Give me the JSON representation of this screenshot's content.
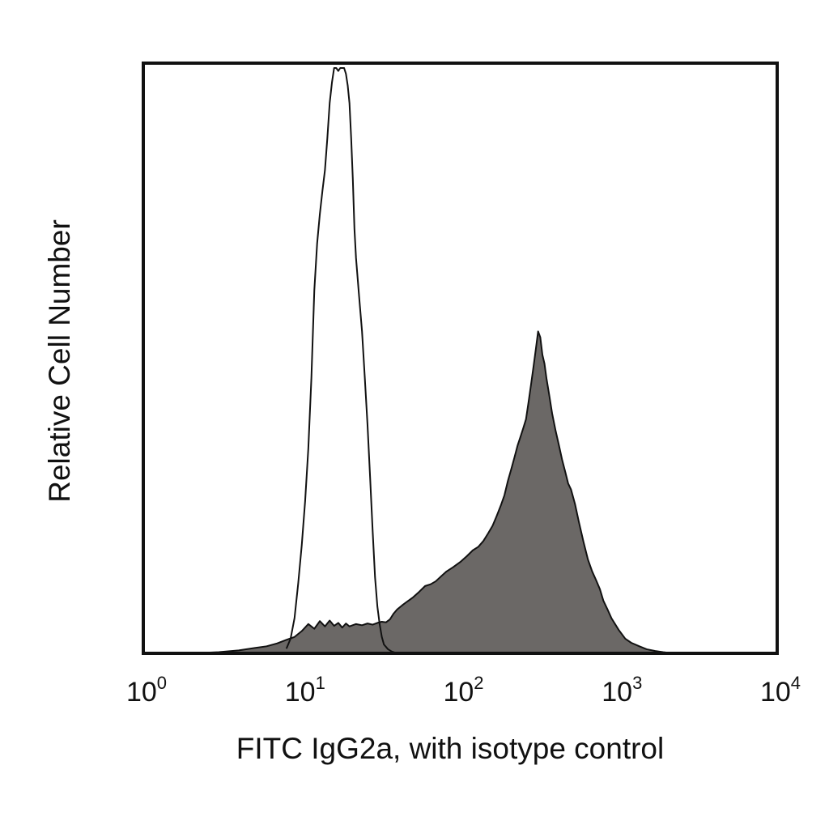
{
  "chart_data": {
    "type": "area",
    "xlabel": "FITC IgG2a, with isotype control",
    "ylabel": "Relative Cell Number",
    "x_scale": "log",
    "xlim": [
      1,
      10000
    ],
    "ylim": [
      0,
      100
    ],
    "grid": false,
    "x_ticks": [
      {
        "base": "10",
        "exp": "0",
        "value": 1
      },
      {
        "base": "10",
        "exp": "1",
        "value": 10
      },
      {
        "base": "10",
        "exp": "2",
        "value": 100
      },
      {
        "base": "10",
        "exp": "3",
        "value": 1000
      },
      {
        "base": "10",
        "exp": "4",
        "value": 10000
      }
    ],
    "series": [
      {
        "style": "filled",
        "fill_color": "#6b6866",
        "line_color": "#111111",
        "x": [
          2.0,
          3.0,
          4.0,
          5.0,
          6.0,
          7.0,
          8.0,
          9.0,
          10.0,
          11.0,
          12.0,
          13.0,
          14.0,
          15.0,
          16.0,
          17.0,
          18.0,
          19.0,
          20.0,
          22.0,
          24.0,
          26.0,
          28.0,
          30.0,
          32.0,
          34.0,
          36.0,
          38.0,
          40.0,
          43.0,
          46.0,
          50.0,
          55.0,
          60.0,
          65.0,
          70.0,
          76.0,
          82.0,
          90.0,
          100.0,
          110.0,
          120.0,
          130.0,
          140.0,
          150.0,
          160.0,
          170.0,
          180.0,
          190.0,
          200.0,
          210.0,
          220.0,
          230.0,
          240.0,
          250.0,
          260.0,
          270.0,
          280.0,
          290.0,
          300.0,
          310.0,
          320.0,
          330.0,
          340.0,
          350.0,
          365.0,
          380.0,
          400.0,
          420.0,
          440.0,
          460.0,
          480.0,
          500.0,
          530.0,
          560.0,
          600.0,
          640.0,
          680.0,
          720.0,
          760.0,
          800.0,
          850.0,
          900.0,
          1000.0,
          1100.0,
          1200.0,
          1350.0,
          1500.0,
          1700.0,
          1900.0,
          2200.0
        ],
        "y": [
          0,
          0.2,
          0.5,
          0.9,
          1.2,
          1.7,
          2.3,
          2.8,
          3.8,
          5.0,
          4.2,
          5.5,
          4.6,
          5.6,
          4.7,
          5.2,
          4.4,
          5.1,
          4.6,
          5.0,
          4.8,
          5.1,
          4.9,
          5.2,
          5.4,
          5.3,
          5.8,
          6.8,
          7.5,
          8.2,
          8.8,
          9.5,
          10.5,
          11.5,
          11.8,
          12.3,
          13.2,
          14.0,
          14.7,
          15.6,
          16.6,
          17.6,
          18.2,
          19.2,
          20.5,
          21.8,
          23.5,
          25.2,
          27.0,
          29.5,
          31.5,
          33.5,
          35.5,
          37.0,
          38.5,
          40.0,
          43.0,
          46.0,
          49.0,
          52.0,
          55.0,
          54.0,
          51.0,
          49.5,
          47.0,
          44.0,
          41.0,
          38.0,
          35.5,
          33.0,
          31.0,
          29.0,
          28.0,
          25.5,
          22.5,
          19.0,
          16.0,
          14.0,
          12.5,
          11.0,
          9.0,
          7.5,
          6.0,
          4.0,
          2.5,
          1.8,
          1.2,
          0.7,
          0.4,
          0.2,
          0
        ]
      },
      {
        "style": "outline",
        "fill_color": "none",
        "line_color": "#111111",
        "x": [
          8.0,
          8.5,
          9.0,
          9.5,
          10.0,
          10.5,
          11.0,
          11.5,
          12.0,
          12.5,
          13.0,
          13.5,
          14.0,
          14.5,
          15.0,
          15.5,
          16.0,
          16.5,
          17.0,
          17.5,
          18.0,
          18.5,
          19.0,
          19.5,
          20.0,
          20.5,
          21.0,
          21.5,
          22.0,
          23.0,
          24.0,
          25.0,
          26.0,
          27.0,
          28.0,
          29.0,
          30.0,
          31.0,
          32.0,
          33.0,
          35.0,
          37.0,
          40.0
        ],
        "y": [
          0.8,
          2.5,
          6.0,
          12.0,
          18.5,
          26.0,
          35.0,
          47.0,
          62.0,
          70.0,
          75.0,
          79.0,
          82.5,
          88.0,
          94.0,
          97.5,
          100.0,
          100.0,
          99.5,
          100.0,
          100.0,
          100.0,
          99.0,
          97.0,
          94.0,
          88.0,
          81.0,
          72.5,
          67.5,
          61.0,
          55.0,
          47.0,
          39.0,
          30.0,
          21.0,
          13.0,
          8.0,
          5.0,
          2.8,
          1.5,
          0.7,
          0.3,
          0
        ]
      }
    ]
  }
}
